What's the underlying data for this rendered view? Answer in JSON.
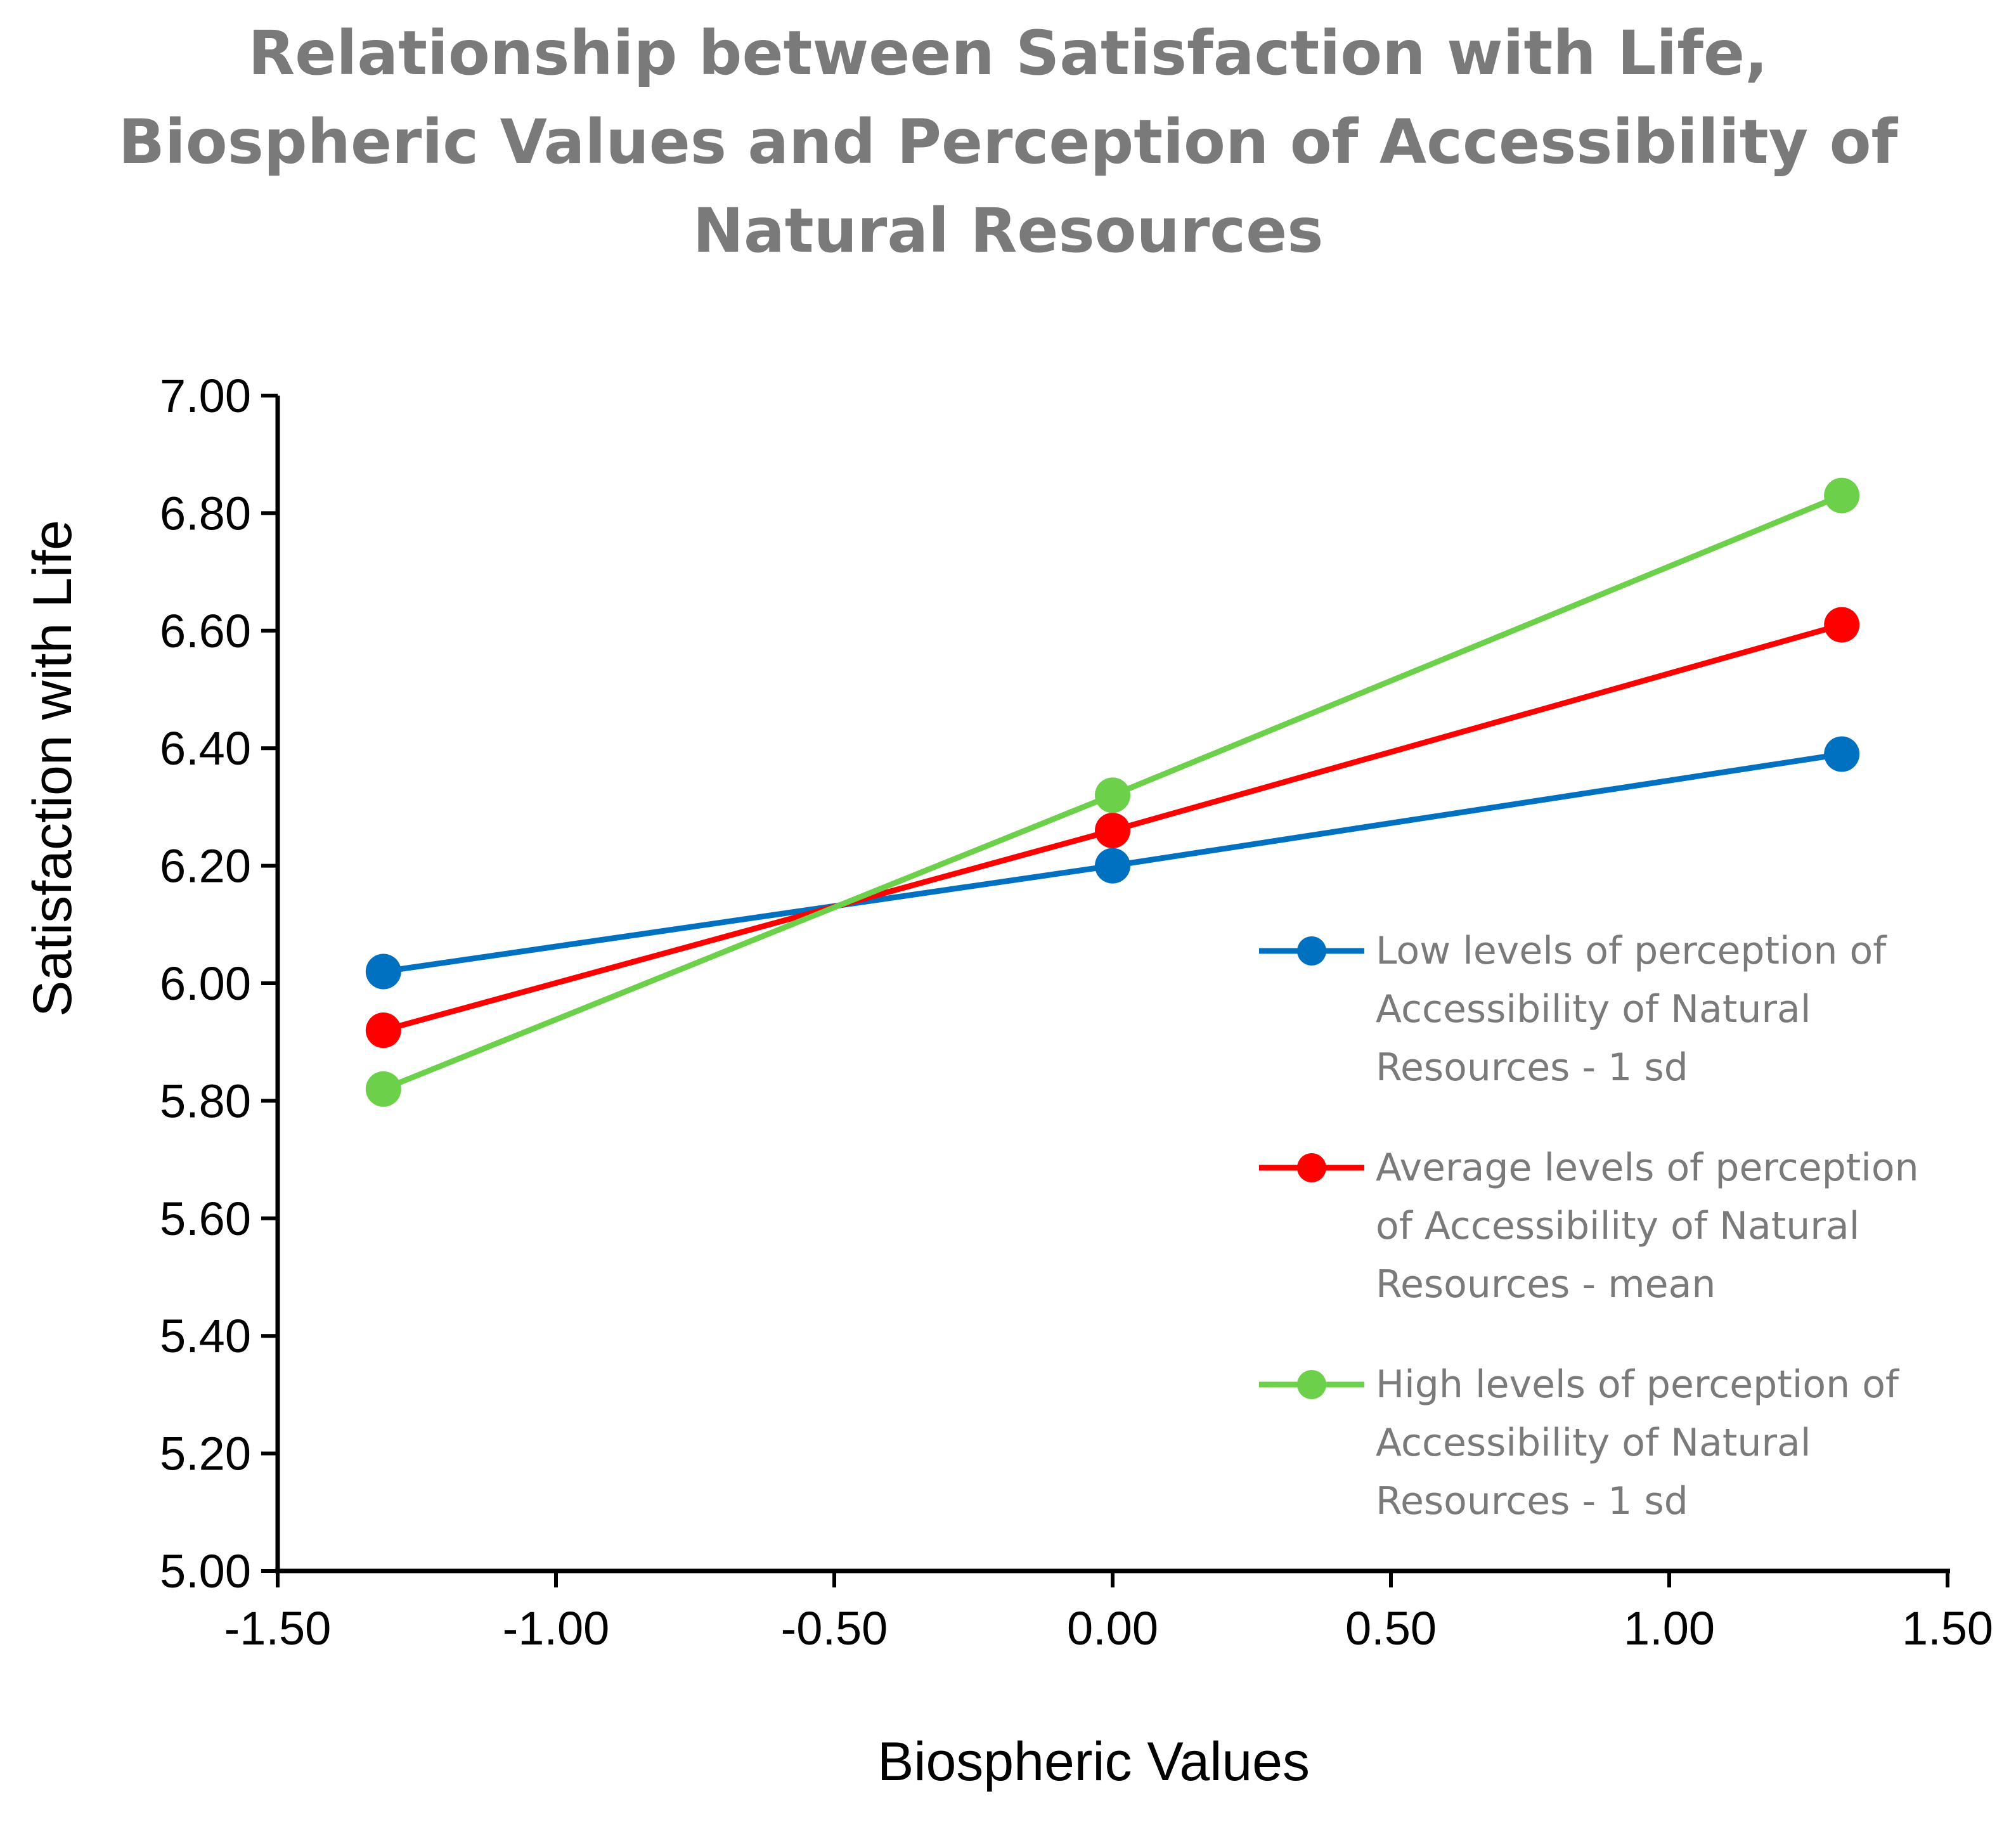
{
  "chart_data": {
    "type": "line",
    "title_lines": [
      "Relationship between Satisfaction with Life,",
      "Biospheric Values and Perception of Accessibility of",
      "Natural Resources"
    ],
    "xlabel": "Biospheric Values",
    "ylabel": "Satisfaction with Life",
    "xlim": [
      -1.5,
      1.5
    ],
    "ylim": [
      5.0,
      7.0
    ],
    "xticks": [
      "-1.50",
      "-1.00",
      "-0.50",
      "0.00",
      "0.50",
      "1.00",
      "1.50"
    ],
    "yticks": [
      "5.00",
      "5.20",
      "5.40",
      "5.60",
      "5.80",
      "6.00",
      "6.20",
      "6.40",
      "6.60",
      "6.80",
      "7.00"
    ],
    "grid": false,
    "legend_position": "right",
    "series": [
      {
        "name": "Low levels of perception of Accessibility of Natural Resources  - 1 sd",
        "legend_lines": [
          "Low levels of perception of",
          "Accessibility of Natural",
          "Resources  - 1 sd"
        ],
        "color": "#0070C0",
        "x": [
          -1.31,
          0.0,
          1.31
        ],
        "y": [
          6.02,
          6.2,
          6.39
        ]
      },
      {
        "name": "Average levels of perception of Accessibility of Natural Resources - mean",
        "legend_lines": [
          "Average levels of perception",
          "of Accessibility of Natural",
          "Resources - mean"
        ],
        "color": "#FF0000",
        "x": [
          -1.31,
          0.0,
          1.31
        ],
        "y": [
          5.92,
          6.26,
          6.61
        ]
      },
      {
        "name": "High levels of perception of Accessibility of Natural Resources - 1 sd",
        "legend_lines": [
          "High levels of perception of",
          "Accessibility of Natural",
          "Resources - 1 sd"
        ],
        "color": "#6CD04A",
        "x": [
          -1.31,
          0.0,
          1.31
        ],
        "y": [
          5.82,
          6.32,
          6.83
        ]
      }
    ]
  }
}
